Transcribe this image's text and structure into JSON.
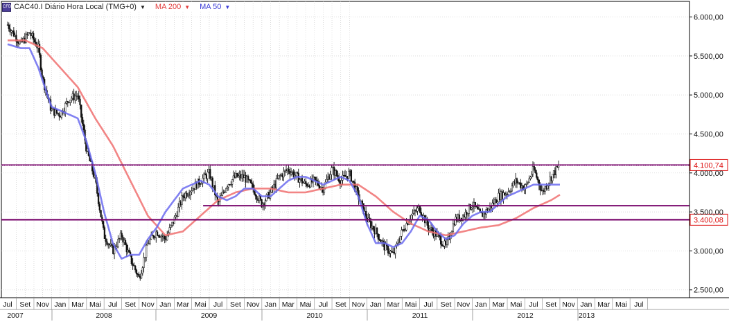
{
  "chart_data": {
    "type": "candlestick",
    "symbol": "CAC40.I",
    "header_title": "CAC40.I Diário Hora Local (TMG+0)",
    "indicators": [
      {
        "label": "MA 200",
        "color": "#f07070"
      },
      {
        "label": "MA 50",
        "color": "#6b6bf0"
      }
    ],
    "y_axis": {
      "min": 2400,
      "max": 6200,
      "ticks": [
        "2.500,00",
        "3.000,00",
        "3.500,00",
        "4.000,00",
        "4.500,00",
        "5.000,00",
        "5.500,00",
        "6.000,00"
      ],
      "tick_values": [
        2500,
        3000,
        3500,
        4000,
        4500,
        5000,
        5500,
        6000
      ]
    },
    "x_axis": {
      "months": [
        "Jul",
        "Set",
        "Nov",
        "Jan",
        "Mar",
        "Mai",
        "Jul",
        "Set",
        "Nov",
        "Jan",
        "Mar",
        "Mai",
        "Jul",
        "Set",
        "Nov",
        "Jan",
        "Mar",
        "Mai",
        "Jul",
        "Set",
        "Nov",
        "Jan",
        "Mar",
        "Mai",
        "Jul",
        "Set",
        "Nov",
        "Jan",
        "Mar",
        "Mai",
        "Jul",
        "Set",
        "Nov",
        "Jan",
        "Mar",
        "Mai",
        "Jul"
      ],
      "years": [
        "2007",
        "2008",
        "2009",
        "2010",
        "2011",
        "2012",
        "2013"
      ]
    },
    "horizontal_levels": [
      {
        "value": 4100.74,
        "label": "4.100,74",
        "style": "dotted",
        "color": "#7a0a6e"
      },
      {
        "value": 3400.08,
        "label": "3.400,08",
        "style": "solid",
        "color": "#7a0a6e"
      },
      {
        "value": 3580,
        "label": "",
        "style": "segment",
        "color": "#7a0a6e",
        "from_month": 22.3
      }
    ],
    "price_path": [
      [
        0,
        5900
      ],
      [
        1.5,
        5650
      ],
      [
        2.5,
        5800
      ],
      [
        3.5,
        5600
      ],
      [
        4,
        5200
      ],
      [
        5,
        4800
      ],
      [
        6,
        4750
      ],
      [
        7,
        4950
      ],
      [
        8,
        5000
      ],
      [
        9,
        4300
      ],
      [
        10,
        3900
      ],
      [
        11,
        3200
      ],
      [
        12,
        3000
      ],
      [
        13,
        3200
      ],
      [
        14,
        2900
      ],
      [
        15,
        2650
      ],
      [
        16,
        3100
      ],
      [
        17,
        3250
      ],
      [
        18,
        3150
      ],
      [
        19,
        3400
      ],
      [
        20,
        3700
      ],
      [
        21,
        3800
      ],
      [
        22,
        3900
      ],
      [
        23,
        4000
      ],
      [
        24,
        3600
      ],
      [
        25,
        3850
      ],
      [
        26,
        3950
      ],
      [
        27,
        3950
      ],
      [
        28,
        3800
      ],
      [
        29,
        3600
      ],
      [
        30,
        3750
      ],
      [
        31,
        3950
      ],
      [
        32,
        4050
      ],
      [
        33,
        3950
      ],
      [
        34,
        3850
      ],
      [
        35,
        3900
      ],
      [
        36,
        3800
      ],
      [
        37,
        4050
      ],
      [
        38,
        3900
      ],
      [
        39,
        4000
      ],
      [
        40,
        3700
      ],
      [
        41,
        3400
      ],
      [
        42,
        3250
      ],
      [
        43,
        3050
      ],
      [
        44,
        2950
      ],
      [
        45,
        3250
      ],
      [
        46,
        3450
      ],
      [
        47,
        3550
      ],
      [
        48,
        3300
      ],
      [
        49,
        3200
      ],
      [
        50,
        3050
      ],
      [
        51,
        3400
      ],
      [
        52,
        3450
      ],
      [
        53,
        3600
      ],
      [
        54,
        3450
      ],
      [
        55,
        3550
      ],
      [
        56,
        3700
      ],
      [
        57,
        3750
      ],
      [
        58,
        3900
      ],
      [
        59,
        3800
      ],
      [
        60,
        4050
      ],
      [
        61,
        3750
      ],
      [
        62,
        3950
      ],
      [
        63,
        4100
      ]
    ],
    "ma50_path": [
      [
        0,
        5650
      ],
      [
        1.5,
        5600
      ],
      [
        2.5,
        5600
      ],
      [
        3.5,
        5350
      ],
      [
        5,
        4850
      ],
      [
        6,
        4800
      ],
      [
        7,
        4750
      ],
      [
        8,
        4700
      ],
      [
        9,
        4400
      ],
      [
        10,
        4000
      ],
      [
        11,
        3500
      ],
      [
        12,
        3100
      ],
      [
        13,
        2900
      ],
      [
        14,
        2950
      ],
      [
        15,
        2950
      ],
      [
        16,
        3150
      ],
      [
        17,
        3300
      ],
      [
        18,
        3500
      ],
      [
        19,
        3650
      ],
      [
        20,
        3800
      ],
      [
        21,
        3850
      ],
      [
        22,
        3900
      ],
      [
        23,
        3850
      ],
      [
        24,
        3700
      ],
      [
        25,
        3650
      ],
      [
        26,
        3700
      ],
      [
        27,
        3800
      ],
      [
        28,
        3800
      ],
      [
        29,
        3700
      ],
      [
        30,
        3700
      ],
      [
        31,
        3800
      ],
      [
        32,
        3900
      ],
      [
        33,
        3950
      ],
      [
        34,
        3950
      ],
      [
        35,
        3900
      ],
      [
        36,
        3850
      ],
      [
        37,
        3900
      ],
      [
        38,
        3950
      ],
      [
        39,
        3900
      ],
      [
        40,
        3700
      ],
      [
        41,
        3350
      ],
      [
        42,
        3100
      ],
      [
        43,
        3100
      ],
      [
        44,
        3050
      ],
      [
        45,
        3100
      ],
      [
        46,
        3250
      ],
      [
        47,
        3450
      ],
      [
        48,
        3400
      ],
      [
        49,
        3250
      ],
      [
        50,
        3150
      ],
      [
        51,
        3200
      ],
      [
        52,
        3350
      ],
      [
        53,
        3450
      ],
      [
        54,
        3500
      ],
      [
        55,
        3500
      ],
      [
        56,
        3600
      ],
      [
        57,
        3700
      ],
      [
        58,
        3750
      ],
      [
        59,
        3800
      ],
      [
        60,
        3850
      ],
      [
        61,
        3850
      ],
      [
        62,
        3850
      ],
      [
        63,
        3850
      ]
    ],
    "ma200_path": [
      [
        0,
        5700
      ],
      [
        2,
        5700
      ],
      [
        4,
        5600
      ],
      [
        6,
        5350
      ],
      [
        8,
        5100
      ],
      [
        10,
        4700
      ],
      [
        12,
        4350
      ],
      [
        14,
        3900
      ],
      [
        16,
        3450
      ],
      [
        18,
        3200
      ],
      [
        20,
        3250
      ],
      [
        22,
        3450
      ],
      [
        24,
        3650
      ],
      [
        26,
        3750
      ],
      [
        28,
        3800
      ],
      [
        30,
        3800
      ],
      [
        32,
        3750
      ],
      [
        34,
        3750
      ],
      [
        36,
        3800
      ],
      [
        38,
        3850
      ],
      [
        40,
        3850
      ],
      [
        42,
        3700
      ],
      [
        44,
        3500
      ],
      [
        46,
        3350
      ],
      [
        48,
        3250
      ],
      [
        50,
        3200
      ],
      [
        52,
        3250
      ],
      [
        54,
        3300
      ],
      [
        56,
        3330
      ],
      [
        58,
        3420
      ],
      [
        60,
        3550
      ],
      [
        62,
        3650
      ],
      [
        63,
        3720
      ]
    ]
  }
}
